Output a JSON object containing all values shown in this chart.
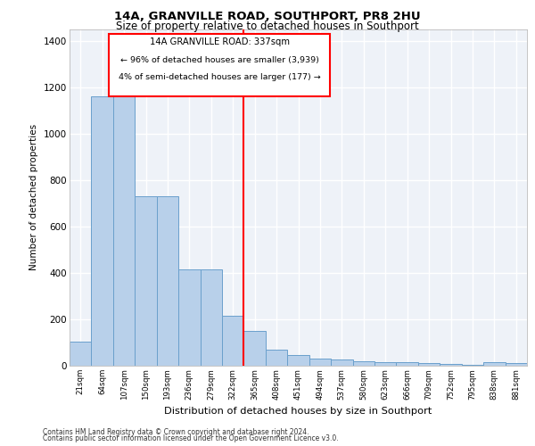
{
  "title1": "14A, GRANVILLE ROAD, SOUTHPORT, PR8 2HU",
  "title2": "Size of property relative to detached houses in Southport",
  "xlabel": "Distribution of detached houses by size in Southport",
  "ylabel": "Number of detached properties",
  "categories": [
    "21sqm",
    "64sqm",
    "107sqm",
    "150sqm",
    "193sqm",
    "236sqm",
    "279sqm",
    "322sqm",
    "365sqm",
    "408sqm",
    "451sqm",
    "494sqm",
    "537sqm",
    "580sqm",
    "623sqm",
    "666sqm",
    "709sqm",
    "752sqm",
    "795sqm",
    "838sqm",
    "881sqm"
  ],
  "bar_heights": [
    105,
    1160,
    1160,
    730,
    730,
    415,
    415,
    215,
    150,
    70,
    45,
    30,
    25,
    18,
    15,
    15,
    10,
    8,
    5,
    15,
    10
  ],
  "bar_color": "#b8d0ea",
  "bar_edgecolor": "#6aa0cc",
  "vline_idx": 8.0,
  "vline_color": "red",
  "annotation_title": "14A GRANVILLE ROAD: 337sqm",
  "annotation_line1": "← 96% of detached houses are smaller (3,939)",
  "annotation_line2": "4% of semi-detached houses are larger (177) →",
  "ylim": [
    0,
    1450
  ],
  "yticks": [
    0,
    200,
    400,
    600,
    800,
    1000,
    1200,
    1400
  ],
  "bg_color": "#eef2f8",
  "grid_color": "#ffffff",
  "footer1": "Contains HM Land Registry data © Crown copyright and database right 2024.",
  "footer2": "Contains public sector information licensed under the Open Government Licence v3.0."
}
